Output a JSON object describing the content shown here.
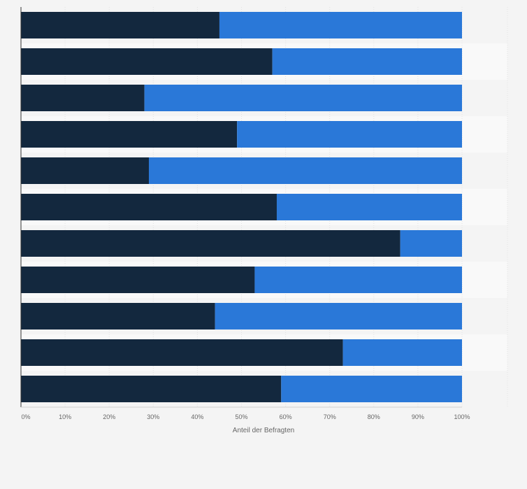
{
  "chart_data": {
    "type": "bar",
    "orientation": "horizontal",
    "stacked": true,
    "categories": [
      "",
      "",
      "",
      "",
      "",
      "",
      "",
      "",
      "",
      "",
      ""
    ],
    "series": [
      {
        "values": [
          45,
          57,
          28,
          49,
          29,
          58,
          86,
          53,
          44,
          73,
          59
        ],
        "color": "#13283e"
      },
      {
        "values": [
          55,
          43,
          72,
          51,
          71,
          42,
          14,
          47,
          56,
          27,
          41
        ],
        "color": "#2a78d8"
      }
    ],
    "xlabel": "Anteil der Befragten",
    "xticks": [
      "0%",
      "10%",
      "20%",
      "30%",
      "40%",
      "50%",
      "60%",
      "70%",
      "80%",
      "90%",
      "100%"
    ],
    "xlim": [
      0,
      100
    ],
    "grid": true,
    "legend": "none"
  }
}
